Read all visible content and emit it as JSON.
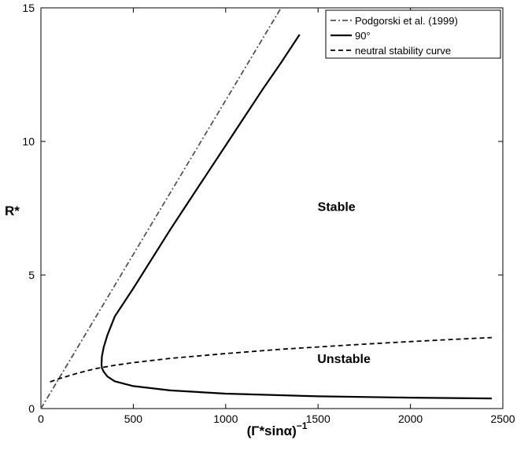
{
  "chart_data": {
    "type": "line",
    "xlabel": "(Γ*sinα)",
    "xlabel_sup": "−1",
    "ylabel": "R*",
    "xlim": [
      0,
      2500
    ],
    "ylim": [
      0,
      15
    ],
    "xticks": [
      "0",
      "500",
      "1000",
      "1500",
      "2000",
      "2500"
    ],
    "yticks": [
      "0",
      "5",
      "10",
      "15"
    ],
    "grid": false,
    "legend_position": "top-right",
    "annotations": [
      {
        "text": "Stable",
        "x": 1600,
        "y": 7.4
      },
      {
        "text": "Unstable",
        "x": 1640,
        "y": 1.7
      }
    ],
    "series": [
      {
        "name": "Podgorski et al. (1999)",
        "style": "dash-dot",
        "color": "#555555",
        "x": [
          0,
          1300
        ],
        "y": [
          0,
          15
        ]
      },
      {
        "name": "90°",
        "style": "solid",
        "color": "#000000",
        "x": [
          2440,
          2000,
          1500,
          1000,
          700,
          500,
          400,
          360,
          340,
          330,
          328,
          330,
          340,
          360,
          400,
          500,
          600,
          700,
          800,
          900,
          1000,
          1100,
          1200,
          1300,
          1400
        ],
        "y": [
          0.38,
          0.41,
          0.46,
          0.56,
          0.68,
          0.84,
          1.02,
          1.2,
          1.38,
          1.52,
          1.65,
          1.95,
          2.3,
          2.75,
          3.45,
          4.5,
          5.6,
          6.7,
          7.75,
          8.8,
          9.85,
          10.9,
          11.95,
          12.95,
          14.0
        ]
      },
      {
        "name": "neutral stability curve",
        "style": "dashed",
        "color": "#000000",
        "x": [
          50,
          100,
          200,
          300,
          400,
          500,
          700,
          1000,
          1300,
          1600,
          1900,
          2200,
          2440
        ],
        "y": [
          1.0,
          1.12,
          1.33,
          1.5,
          1.62,
          1.72,
          1.88,
          2.06,
          2.22,
          2.35,
          2.47,
          2.58,
          2.66
        ]
      }
    ]
  }
}
